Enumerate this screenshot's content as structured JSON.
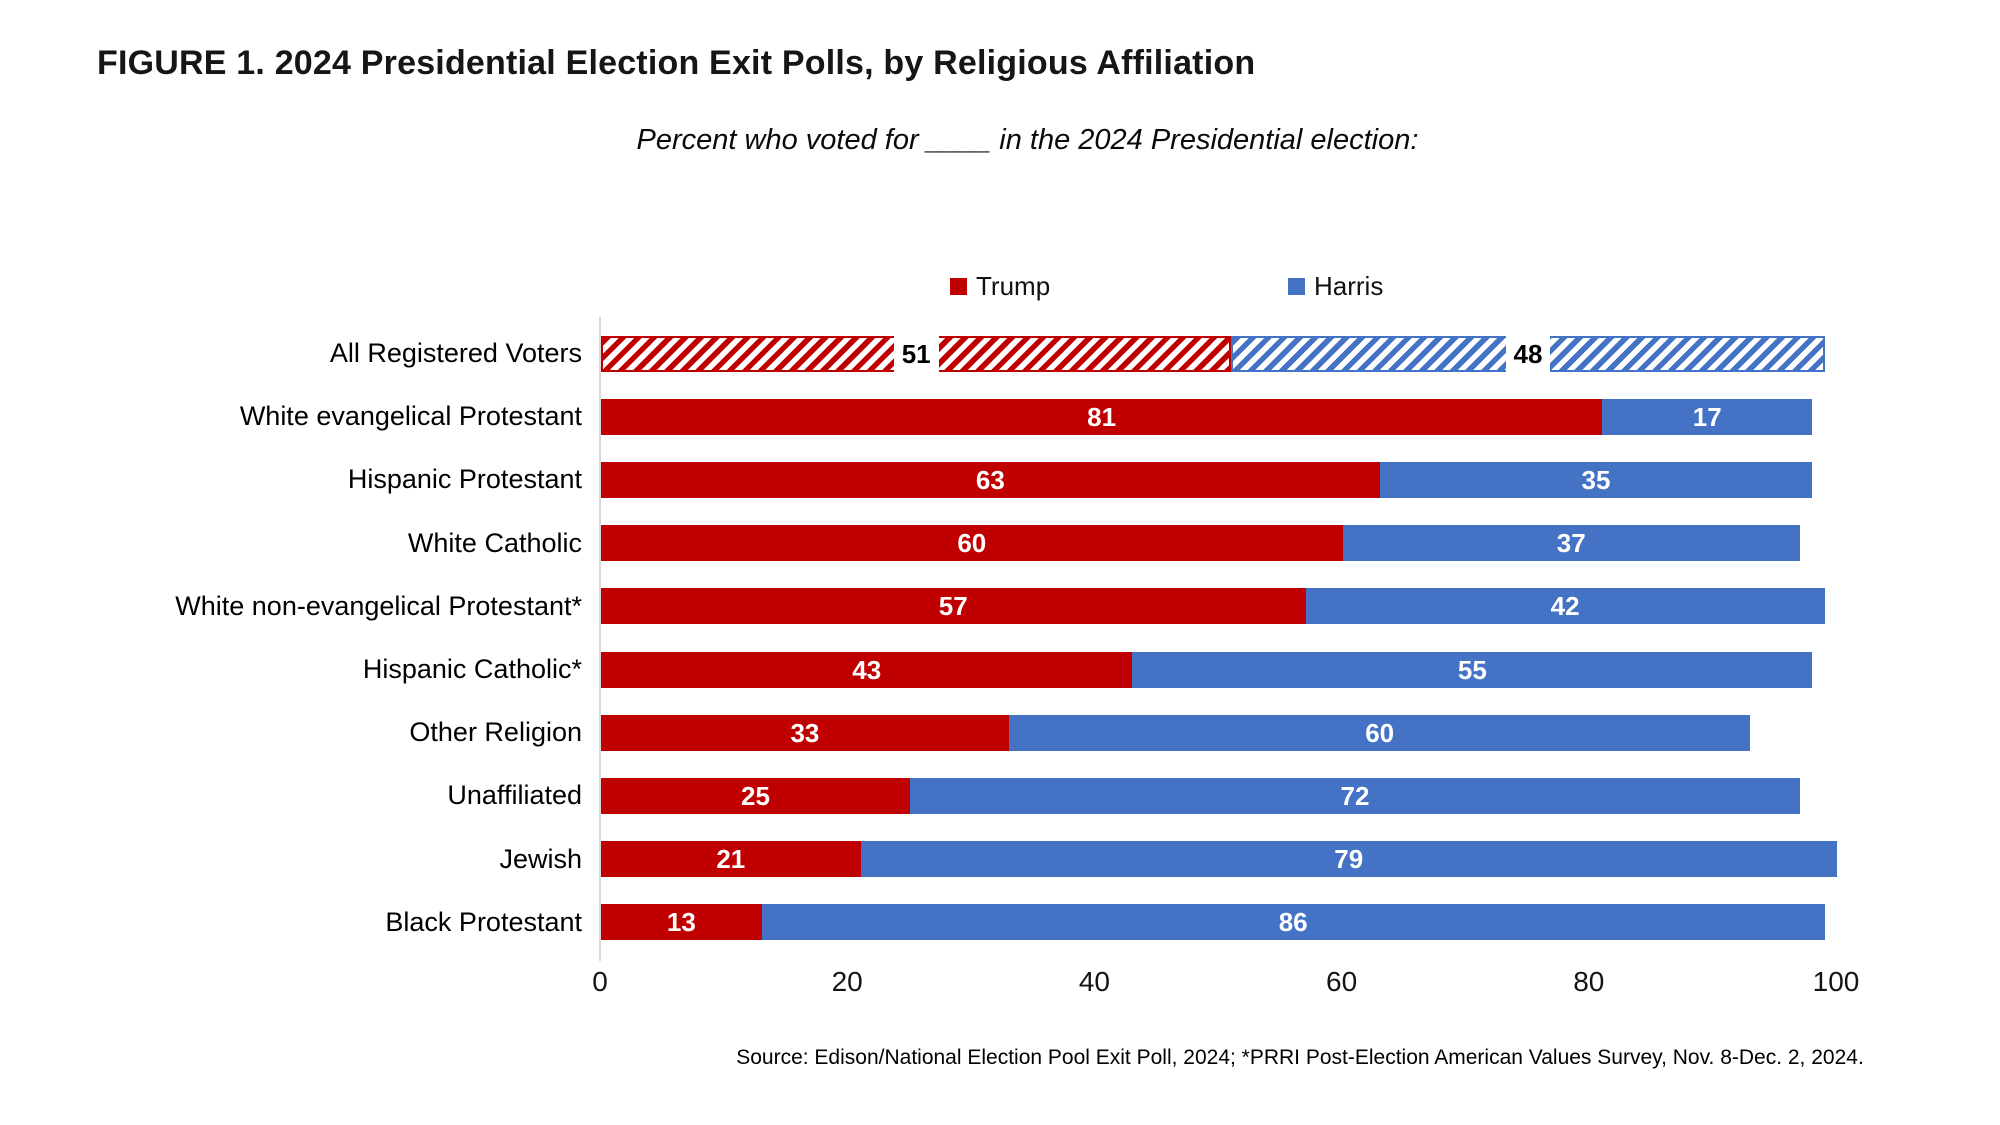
{
  "figure": {
    "title": "FIGURE 1. 2024 Presidential Election Exit Polls, by Religious Affiliation",
    "subtitle": "Percent who voted for ____ in the 2024 Presidential election:",
    "source": "Source: Edison/National Election Pool Exit Poll, 2024; *PRRI Post-Election American Values Survey, Nov. 8-Dec. 2, 2024."
  },
  "legend": [
    {
      "label": "Trump",
      "color": "#C00000"
    },
    {
      "label": "Harris",
      "color": "#4472C4"
    }
  ],
  "chart_data": {
    "type": "bar",
    "orientation": "horizontal",
    "stacked": true,
    "title": "FIGURE 1. 2024 Presidential Election Exit Polls, by Religious Affiliation",
    "subtitle": "Percent who voted for ____ in the 2024 Presidential election:",
    "categories": [
      "All Registered Voters",
      "White evangelical Protestant",
      "Hispanic Protestant",
      "White Catholic",
      "White non-evangelical Protestant*",
      "Hispanic Catholic*",
      "Other Religion",
      "Unaffiliated",
      "Jewish",
      "Black Protestant"
    ],
    "series": [
      {
        "name": "Trump",
        "color": "#C00000",
        "values": [
          51,
          81,
          63,
          60,
          57,
          43,
          33,
          25,
          21,
          13
        ]
      },
      {
        "name": "Harris",
        "color": "#4472C4",
        "values": [
          48,
          17,
          35,
          37,
          42,
          55,
          60,
          72,
          79,
          86
        ]
      }
    ],
    "hatched_category_indexes": [
      0
    ],
    "xlabel": "",
    "ylabel": "",
    "x_ticks": [
      0,
      20,
      40,
      60,
      80,
      100
    ],
    "xlim": [
      0,
      100
    ],
    "grid": false,
    "legend_position": "top",
    "axis_line_color": "#D9D9D9"
  }
}
